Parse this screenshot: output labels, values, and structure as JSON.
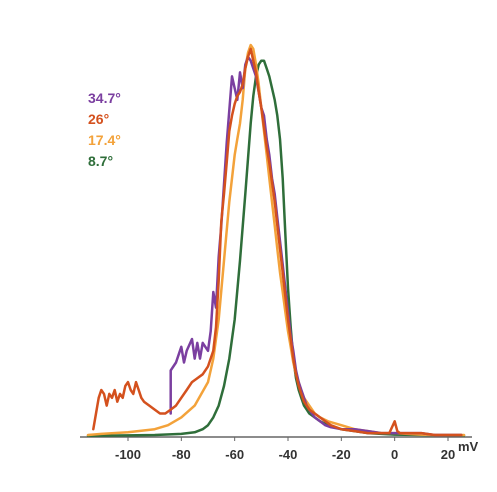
{
  "chart_data": {
    "type": "line",
    "title": "",
    "xlabel": "mV",
    "ylabel": "",
    "xlim": [
      -118,
      29
    ],
    "ylim": [
      0,
      1
    ],
    "grid": false,
    "legend_placement": "top-left",
    "x_ticks": [
      -100,
      -80,
      -60,
      -40,
      -20,
      0,
      20
    ],
    "x_tick_labels": [
      "-100",
      "-80",
      "-60",
      "-40",
      "-20",
      "0",
      "20"
    ],
    "series": [
      {
        "name": "34.7°",
        "color": "#7b3fa0",
        "x": [
          -84,
          -84,
          -82,
          -80,
          -79,
          -78,
          -76,
          -75,
          -74,
          -73,
          -72,
          -70,
          -69,
          -68,
          -67,
          -66,
          -65,
          -63,
          -61,
          -59,
          -58,
          -57,
          -56,
          -55,
          -54,
          -53,
          -52,
          -51,
          -50,
          -49,
          -48,
          -47,
          -46,
          -45,
          -44,
          -43,
          -42,
          -41,
          -40,
          -39,
          -38,
          -37,
          -36,
          -35,
          -34,
          -33,
          -32,
          -30,
          -28,
          -26,
          -24,
          -20,
          -15,
          -10,
          -5,
          0,
          5,
          10,
          15,
          20,
          25
        ],
        "y": [
          0.06,
          0.17,
          0.19,
          0.23,
          0.19,
          0.22,
          0.25,
          0.2,
          0.24,
          0.2,
          0.24,
          0.22,
          0.27,
          0.37,
          0.33,
          0.46,
          0.54,
          0.75,
          0.92,
          0.86,
          0.93,
          0.89,
          0.95,
          0.97,
          0.96,
          0.94,
          0.92,
          0.88,
          0.84,
          0.82,
          0.76,
          0.72,
          0.66,
          0.62,
          0.56,
          0.5,
          0.44,
          0.38,
          0.32,
          0.26,
          0.22,
          0.17,
          0.14,
          0.12,
          0.1,
          0.08,
          0.07,
          0.05,
          0.04,
          0.03,
          0.025,
          0.02,
          0.02,
          0.015,
          0.01,
          0.01,
          0.01,
          0.01,
          0.005,
          0.005,
          0.005
        ]
      },
      {
        "name": "26°",
        "color": "#d4511e",
        "x": [
          -113,
          -112,
          -111,
          -110,
          -109,
          -108,
          -107,
          -106,
          -105,
          -104,
          -103,
          -102,
          -101,
          -100,
          -99,
          -98,
          -97,
          -96,
          -95,
          -94,
          -92,
          -90,
          -88,
          -86,
          -84,
          -82,
          -80,
          -78,
          -76,
          -74,
          -72,
          -70,
          -68,
          -67,
          -66,
          -65,
          -64,
          -63,
          -62,
          -61,
          -60,
          -59,
          -58,
          -57,
          -56,
          -55,
          -54,
          -53,
          -52,
          -51,
          -50,
          -49,
          -48,
          -47,
          -46,
          -45,
          -44,
          -43,
          -42,
          -41,
          -40,
          -39,
          -38,
          -37,
          -36,
          -35,
          -34,
          -32,
          -30,
          -28,
          -26,
          -24,
          -22,
          -20,
          -15,
          -10,
          -5,
          -2,
          0,
          1,
          2,
          4,
          6,
          10,
          15,
          20,
          25
        ],
        "y": [
          0.02,
          0.06,
          0.1,
          0.12,
          0.11,
          0.08,
          0.11,
          0.1,
          0.12,
          0.09,
          0.11,
          0.1,
          0.13,
          0.14,
          0.12,
          0.11,
          0.14,
          0.12,
          0.1,
          0.09,
          0.08,
          0.07,
          0.06,
          0.06,
          0.07,
          0.08,
          0.1,
          0.12,
          0.14,
          0.15,
          0.16,
          0.18,
          0.22,
          0.28,
          0.4,
          0.55,
          0.62,
          0.7,
          0.78,
          0.82,
          0.85,
          0.87,
          0.88,
          0.9,
          0.94,
          0.97,
          0.99,
          0.96,
          0.93,
          0.88,
          0.84,
          0.79,
          0.74,
          0.7,
          0.65,
          0.6,
          0.54,
          0.48,
          0.42,
          0.36,
          0.3,
          0.25,
          0.2,
          0.16,
          0.13,
          0.11,
          0.09,
          0.07,
          0.06,
          0.05,
          0.04,
          0.03,
          0.025,
          0.02,
          0.015,
          0.01,
          0.01,
          0.01,
          0.04,
          0.015,
          0.01,
          0.01,
          0.01,
          0.01,
          0.005,
          0.005,
          0.005
        ]
      },
      {
        "name": "17.4°",
        "color": "#f3a23a",
        "x": [
          -115,
          -110,
          -100,
          -90,
          -85,
          -80,
          -75,
          -70,
          -68,
          -66,
          -64,
          -62,
          -60,
          -59,
          -58,
          -57,
          -56,
          -55,
          -54,
          -53,
          -52,
          -51,
          -50,
          -49,
          -48,
          -47,
          -46,
          -45,
          -44,
          -43,
          -42,
          -41,
          -40,
          -39,
          -38,
          -37,
          -36,
          -35,
          -34,
          -32,
          -30,
          -28,
          -25,
          -20,
          -15,
          -10,
          -5,
          0,
          5,
          10,
          15,
          20,
          26
        ],
        "y": [
          0.005,
          0.008,
          0.012,
          0.02,
          0.03,
          0.05,
          0.08,
          0.14,
          0.2,
          0.3,
          0.45,
          0.6,
          0.72,
          0.76,
          0.8,
          0.86,
          0.94,
          0.98,
          1.0,
          0.99,
          0.95,
          0.9,
          0.84,
          0.78,
          0.72,
          0.66,
          0.6,
          0.54,
          0.48,
          0.42,
          0.37,
          0.32,
          0.27,
          0.23,
          0.19,
          0.16,
          0.14,
          0.12,
          0.1,
          0.08,
          0.06,
          0.05,
          0.04,
          0.03,
          0.02,
          0.015,
          0.01,
          0.01,
          0.008,
          0.006,
          0.005,
          0.005,
          0.005
        ]
      },
      {
        "name": "8.7°",
        "color": "#2f6e3a",
        "x": [
          -115,
          -100,
          -90,
          -80,
          -75,
          -72,
          -70,
          -68,
          -66,
          -64,
          -62,
          -60,
          -58,
          -56,
          -54,
          -53,
          -52,
          -51,
          -50,
          -49,
          -48,
          -47,
          -46,
          -45,
          -44,
          -43,
          -42,
          -41,
          -40,
          -39,
          -38,
          -37,
          -36,
          -35,
          -34,
          -33,
          -32,
          -30,
          -28,
          -25,
          -20,
          -15,
          -10,
          -5,
          0,
          10,
          20,
          26
        ],
        "y": [
          0.003,
          0.004,
          0.005,
          0.008,
          0.012,
          0.02,
          0.03,
          0.05,
          0.08,
          0.13,
          0.2,
          0.3,
          0.45,
          0.62,
          0.8,
          0.87,
          0.92,
          0.95,
          0.96,
          0.96,
          0.94,
          0.92,
          0.89,
          0.86,
          0.82,
          0.76,
          0.66,
          0.52,
          0.38,
          0.28,
          0.2,
          0.15,
          0.12,
          0.1,
          0.08,
          0.07,
          0.06,
          0.05,
          0.04,
          0.03,
          0.02,
          0.015,
          0.01,
          0.008,
          0.006,
          0.005,
          0.004,
          0.004
        ]
      }
    ]
  }
}
